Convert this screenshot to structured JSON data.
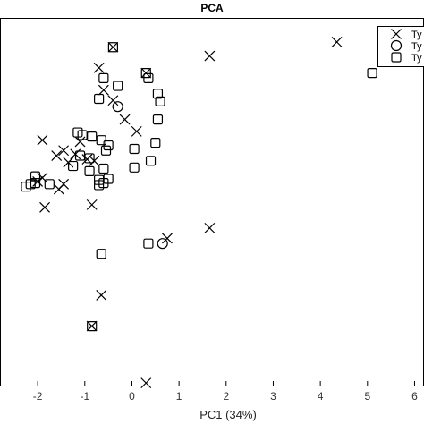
{
  "chart_data": {
    "type": "scatter",
    "title": "PCA",
    "xlabel": "PC1 (34%)",
    "ylabel": "",
    "xlim": [
      -2.8,
      6.2
    ],
    "ylim": [
      -4.1,
      3.0
    ],
    "x_ticks": [
      -2,
      -1,
      0,
      1,
      2,
      3,
      4,
      5,
      6
    ],
    "grid": false,
    "legend_position": "top-right",
    "series": [
      {
        "name": "Ty",
        "marker": "x",
        "points": [
          [
            4.35,
            2.55
          ],
          [
            1.65,
            2.28
          ],
          [
            -0.7,
            2.05
          ],
          [
            -0.6,
            1.62
          ],
          [
            -0.4,
            1.42
          ],
          [
            -0.15,
            1.05
          ],
          [
            0.1,
            0.82
          ],
          [
            -1.9,
            0.65
          ],
          [
            -1.1,
            0.62
          ],
          [
            -1.45,
            0.45
          ],
          [
            -1.6,
            0.35
          ],
          [
            -1.2,
            0.38
          ],
          [
            -0.95,
            0.28
          ],
          [
            -1.35,
            0.22
          ],
          [
            -0.8,
            0.25
          ],
          [
            -1.9,
            -0.08
          ],
          [
            -2.0,
            -0.15
          ],
          [
            -1.45,
            -0.2
          ],
          [
            -1.55,
            -0.3
          ],
          [
            -0.85,
            -0.6
          ],
          [
            -1.85,
            -0.65
          ],
          [
            1.65,
            -1.05
          ],
          [
            0.75,
            -1.25
          ],
          [
            -0.65,
            -2.35
          ],
          [
            -0.85,
            -2.95
          ],
          [
            -0.4,
            2.45
          ],
          [
            0.3,
            1.95
          ],
          [
            0.3,
            -4.05
          ]
        ]
      },
      {
        "name": "Ty",
        "marker": "o",
        "points": [
          [
            0.65,
            -1.35
          ],
          [
            -0.3,
            1.3
          ]
        ]
      },
      {
        "name": "Ty",
        "marker": "s",
        "points": [
          [
            -0.4,
            2.45
          ],
          [
            0.3,
            1.95
          ],
          [
            0.35,
            1.85
          ],
          [
            -0.6,
            1.85
          ],
          [
            -0.3,
            1.7
          ],
          [
            -0.7,
            1.45
          ],
          [
            0.55,
            1.55
          ],
          [
            0.6,
            1.4
          ],
          [
            0.55,
            1.05
          ],
          [
            0.5,
            0.6
          ],
          [
            -1.15,
            0.8
          ],
          [
            -1.05,
            0.75
          ],
          [
            -0.85,
            0.72
          ],
          [
            -0.65,
            0.65
          ],
          [
            -0.5,
            0.55
          ],
          [
            0.05,
            0.48
          ],
          [
            -0.55,
            0.45
          ],
          [
            -1.1,
            0.35
          ],
          [
            -0.9,
            0.3
          ],
          [
            0.4,
            0.25
          ],
          [
            -0.6,
            0.1
          ],
          [
            -1.25,
            0.15
          ],
          [
            -0.5,
            -0.1
          ],
          [
            -0.6,
            -0.18
          ],
          [
            0.05,
            0.12
          ],
          [
            -0.9,
            0.05
          ],
          [
            -2.05,
            -0.05
          ],
          [
            -2.15,
            -0.2
          ],
          [
            -2.05,
            -0.18
          ],
          [
            -1.75,
            -0.2
          ],
          [
            -2.25,
            -0.25
          ],
          [
            -0.7,
            -0.12
          ],
          [
            0.35,
            -1.35
          ],
          [
            -0.65,
            -1.55
          ],
          [
            -0.85,
            -2.95
          ],
          [
            5.1,
            1.95
          ],
          [
            -0.7,
            -0.22
          ]
        ]
      }
    ]
  }
}
